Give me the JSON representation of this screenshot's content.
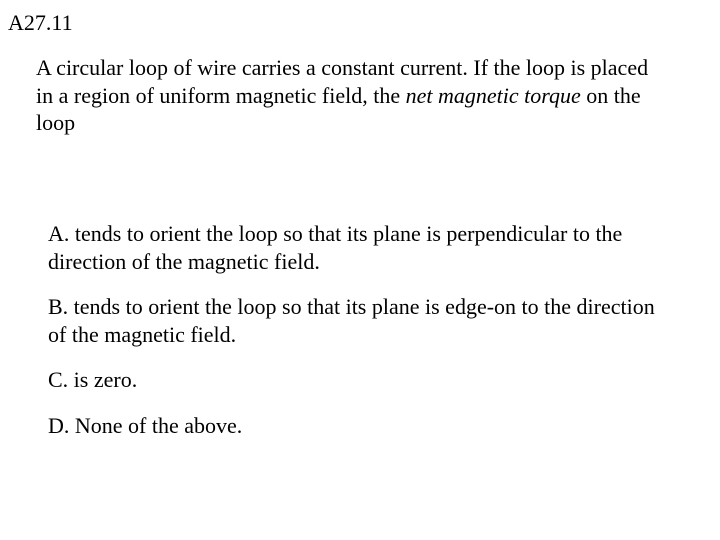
{
  "label": "A27.11",
  "question_part1": "A circular loop of wire carries a constant current. If the loop is placed in a region of uniform magnetic field, the ",
  "question_italic": "net magnetic torque",
  "question_part2": " on the loop",
  "answers": {
    "a": "A. tends to orient the loop so that its plane is perpendicular to the direction of the magnetic field.",
    "b": "B. tends to orient the loop so that its plane is edge-on to the direction of the magnetic field.",
    "c": "C. is zero.",
    "d": "D. None of the above."
  },
  "colors": {
    "background": "#ffffff",
    "text": "#000000"
  },
  "typography": {
    "family": "Times New Roman",
    "size_pt": 22
  }
}
